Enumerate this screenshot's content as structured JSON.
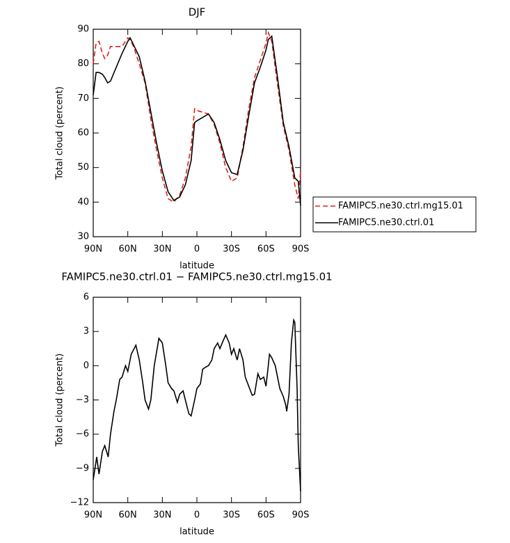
{
  "chart_data": [
    {
      "type": "line",
      "title": "DJF",
      "xlabel": "latitude",
      "ylabel": "Total cloud (percent)",
      "x": [
        90,
        87.5,
        85,
        82,
        80,
        77.5,
        75,
        70,
        65,
        60,
        58,
        55,
        50,
        45,
        40,
        35,
        30,
        25,
        20,
        15,
        10,
        5,
        2,
        0,
        -5,
        -10,
        -15,
        -20,
        -25,
        -30,
        -35,
        -40,
        -45,
        -50,
        -55,
        -60,
        -62,
        -65,
        -70,
        -75,
        -80,
        -85,
        -88,
        -90
      ],
      "series": [
        {
          "name": "FAMIPC5.ne30.ctrl.mg15.01",
          "color": "#e0201b",
          "linestyle": "dashed",
          "values": [
            80,
            86,
            86.5,
            83,
            81.5,
            82.5,
            85,
            85,
            85,
            87.5,
            87,
            85,
            80,
            74.5,
            64,
            55,
            47,
            41,
            40,
            42,
            47,
            56,
            67,
            66.5,
            66,
            65.5,
            62.5,
            57,
            50,
            46,
            47,
            56,
            67,
            76,
            81,
            86,
            89,
            86.5,
            74,
            62,
            55,
            45,
            41,
            49
          ]
        },
        {
          "name": "FAMIPC5.ne30.ctrl.01",
          "color": "#000000",
          "linestyle": "solid",
          "values": [
            71,
            77.5,
            77.5,
            77,
            76,
            74.5,
            75,
            79,
            83,
            86.5,
            87.5,
            85.5,
            82,
            75,
            66,
            57,
            49,
            43,
            40.5,
            41.5,
            45,
            52,
            63,
            63.5,
            64.5,
            65.5,
            63,
            58,
            52,
            48.5,
            48,
            55,
            65,
            74.5,
            79,
            84,
            87,
            88,
            76,
            63,
            56,
            47,
            46,
            39
          ]
        }
      ],
      "xlim": [
        90,
        -90
      ],
      "ylim": [
        30,
        90
      ],
      "xticks": [
        {
          "value": 90,
          "label": "90N"
        },
        {
          "value": 60,
          "label": "60N"
        },
        {
          "value": 30,
          "label": "30N"
        },
        0,
        {
          "value": -30,
          "label": "30S"
        },
        {
          "value": -60,
          "label": "60S"
        },
        {
          "value": -90,
          "label": "90S"
        }
      ],
      "yticks": [
        30,
        40,
        50,
        60,
        70,
        80,
        90
      ],
      "legend": "right"
    },
    {
      "type": "line",
      "title": "FAMIPC5.ne30.ctrl.01 − FAMIPC5.ne30.ctrl.mg15.01",
      "xlabel": "latitude",
      "ylabel": "Total cloud (percent)",
      "x": [
        90,
        87,
        85,
        82,
        80,
        77,
        75,
        72,
        70,
        67,
        65,
        62,
        60,
        57,
        53,
        50,
        47,
        45,
        42,
        40,
        37,
        33,
        30,
        27,
        25,
        22,
        20,
        17,
        15,
        12,
        10,
        7,
        5,
        2,
        0,
        -3,
        -5,
        -8,
        -10,
        -13,
        -15,
        -18,
        -20,
        -22,
        -25,
        -28,
        -30,
        -32,
        -35,
        -37,
        -40,
        -42,
        -45,
        -48,
        -50,
        -53,
        -55,
        -58,
        -60,
        -62,
        -63,
        -65,
        -68,
        -70,
        -72,
        -75,
        -77,
        -78,
        -80,
        -82,
        -84,
        -85,
        -87,
        -88,
        -90
      ],
      "series": [
        {
          "color": "#000000",
          "linestyle": "solid",
          "values": [
            -10,
            -8,
            -9.5,
            -7.5,
            -7,
            -8,
            -6,
            -4,
            -3,
            -1.2,
            -1,
            0,
            -0.5,
            1,
            1.8,
            0.5,
            -1.5,
            -3,
            -3.8,
            -3,
            0,
            2.4,
            2,
            0,
            -1.5,
            -2,
            -2.2,
            -3.2,
            -2.5,
            -2.2,
            -3,
            -4.2,
            -4.4,
            -3,
            -2,
            -1.6,
            -0.3,
            -0.1,
            0,
            0.5,
            1.5,
            2,
            1.5,
            2,
            2.7,
            2,
            1,
            1.5,
            0.5,
            1.5,
            0.5,
            -1,
            -1.8,
            -2.6,
            -2.5,
            -0.7,
            -1.2,
            -1,
            -1.8,
            0,
            1,
            0.7,
            0,
            -1,
            -2,
            -2.7,
            -3.4,
            -4,
            -2.5,
            2,
            4,
            3.8,
            -2,
            -7,
            -11
          ]
        }
      ],
      "xlim": [
        90,
        -90
      ],
      "ylim": [
        -12,
        6
      ],
      "xticks": [
        {
          "value": 90,
          "label": "90N"
        },
        {
          "value": 60,
          "label": "60N"
        },
        {
          "value": 30,
          "label": "30N"
        },
        0,
        {
          "value": -30,
          "label": "30S"
        },
        {
          "value": -60,
          "label": "60S"
        },
        {
          "value": -90,
          "label": "90S"
        }
      ],
      "yticks": [
        {
          "value": -12,
          "label": "−12"
        },
        {
          "value": -9,
          "label": "−9"
        },
        {
          "value": -6,
          "label": "−6"
        },
        {
          "value": -3,
          "label": "−3"
        },
        0,
        3,
        6
      ]
    }
  ]
}
